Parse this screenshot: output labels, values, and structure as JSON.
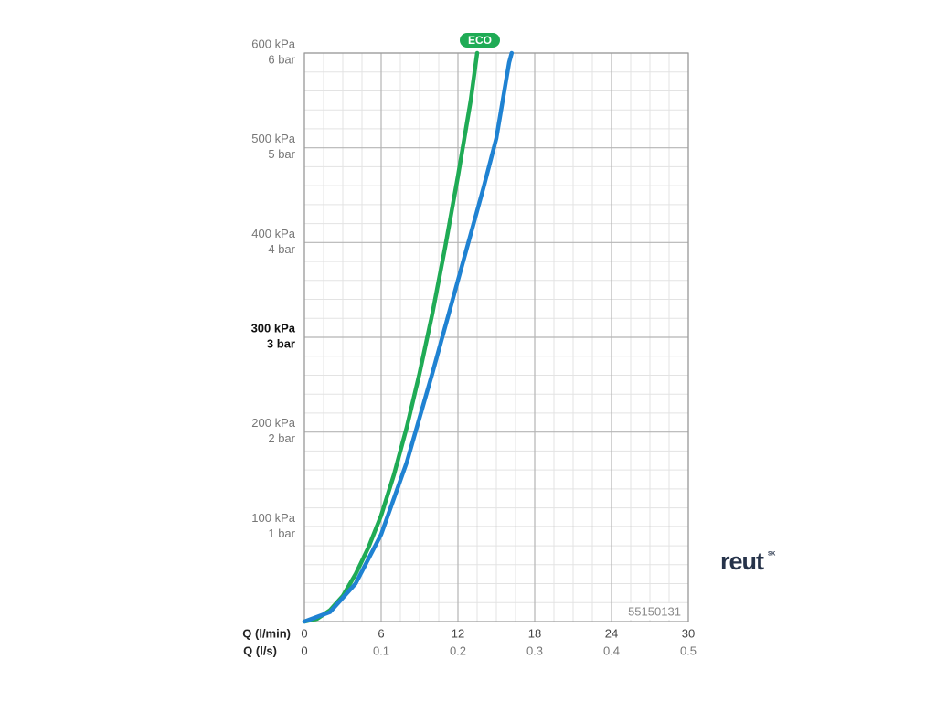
{
  "chart_data": {
    "type": "line",
    "xlim": [
      0,
      30
    ],
    "xticks": [
      0,
      6,
      12,
      18,
      24,
      30
    ],
    "xlabel": "Q (l/min)",
    "x2lim": [
      0,
      0.5
    ],
    "x2ticks": [
      0,
      0.1,
      0.2,
      0.3,
      0.4,
      0.5
    ],
    "x2label": "Q (l/s)",
    "ylim": [
      0,
      600
    ],
    "yticks": [
      {
        "value": 100,
        "label": "100 kPa"
      },
      {
        "value": 200,
        "label": "200 kPa"
      },
      {
        "value": 300,
        "label": "300 kPa"
      },
      {
        "value": 400,
        "label": "400 kPa"
      },
      {
        "value": 500,
        "label": "500 kPa"
      },
      {
        "value": 600,
        "label": "600 kPa"
      }
    ],
    "y2lim": [
      0,
      6
    ],
    "y2ticks": [
      {
        "value": 1,
        "label": "1 bar"
      },
      {
        "value": 2,
        "label": "2 bar"
      },
      {
        "value": 3,
        "label": "3 bar"
      },
      {
        "value": 4,
        "label": "4 bar"
      },
      {
        "value": 5,
        "label": "5 bar"
      },
      {
        "value": 6,
        "label": "6 bar"
      }
    ],
    "highlight_ytick": 300,
    "grid": true,
    "annotation": "55150131",
    "series": [
      {
        "name": "ECO",
        "color": "#1fab55",
        "x": [
          0,
          1,
          2,
          3,
          4,
          5,
          6,
          7,
          8,
          9,
          10,
          11,
          12,
          13,
          13.5
        ],
        "values": [
          0,
          3,
          12,
          27,
          50,
          78,
          112,
          155,
          205,
          262,
          325,
          395,
          470,
          550,
          600
        ]
      },
      {
        "color": "#1f82d2",
        "x": [
          0,
          2,
          4,
          6,
          8,
          10,
          12,
          14,
          15,
          16,
          16.2
        ],
        "values": [
          0,
          10,
          40,
          92,
          168,
          262,
          360,
          458,
          510,
          590,
          600
        ]
      }
    ]
  },
  "logo": {
    "text": "reut",
    "sup": "SK"
  }
}
